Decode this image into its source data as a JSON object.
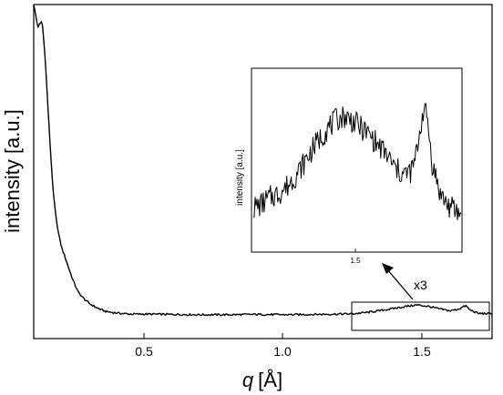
{
  "chart_data": [
    {
      "type": "line",
      "xlabel_symbol": "q",
      "xlabel_unit": "[Å]",
      "ylabel": "intensity [a.u.]",
      "xlim": [
        0.1,
        1.75
      ],
      "ylim": [
        0,
        1.0
      ],
      "xticks": [
        0.5,
        1.0,
        1.5
      ],
      "xtick_labels": [
        "0.5",
        "1.0",
        "1.5"
      ],
      "series": [
        {
          "x": [
            0.1,
            0.115,
            0.13,
            0.14,
            0.15,
            0.16,
            0.17,
            0.18,
            0.19,
            0.2,
            0.22,
            0.24,
            0.26,
            0.28,
            0.3,
            0.33,
            0.36,
            0.4,
            0.45,
            0.5,
            0.6,
            0.7,
            0.8,
            0.9,
            1.0,
            1.1,
            1.2,
            1.25,
            1.3,
            1.35,
            1.4,
            1.45,
            1.48,
            1.52,
            1.56,
            1.6,
            1.63,
            1.655,
            1.67,
            1.7,
            1.75
          ],
          "y": [
            1.0,
            0.93,
            0.95,
            0.85,
            0.7,
            0.55,
            0.42,
            0.34,
            0.29,
            0.25,
            0.2,
            0.15,
            0.11,
            0.09,
            0.075,
            0.06,
            0.05,
            0.045,
            0.042,
            0.042,
            0.041,
            0.04,
            0.04,
            0.041,
            0.04,
            0.041,
            0.042,
            0.043,
            0.047,
            0.053,
            0.06,
            0.067,
            0.07,
            0.066,
            0.058,
            0.052,
            0.058,
            0.068,
            0.055,
            0.044,
            0.043
          ]
        }
      ]
    },
    {
      "type": "line",
      "ylabel": "intensity [a.u.]",
      "xlim": [
        1.25,
        1.75
      ],
      "xticks": [
        1.5
      ],
      "xtick_labels": [
        "1.5"
      ],
      "series": [
        {
          "x": [
            1.25,
            1.27,
            1.29,
            1.31,
            1.33,
            1.35,
            1.37,
            1.39,
            1.41,
            1.43,
            1.45,
            1.47,
            1.49,
            1.51,
            1.53,
            1.55,
            1.57,
            1.59,
            1.61,
            1.63,
            1.64,
            1.65,
            1.66,
            1.67,
            1.68,
            1.7,
            1.72,
            1.75
          ],
          "y": [
            0.22,
            0.24,
            0.28,
            0.3,
            0.34,
            0.4,
            0.47,
            0.55,
            0.62,
            0.68,
            0.73,
            0.75,
            0.72,
            0.68,
            0.64,
            0.58,
            0.53,
            0.45,
            0.41,
            0.43,
            0.5,
            0.65,
            0.8,
            0.72,
            0.48,
            0.3,
            0.23,
            0.18
          ]
        }
      ]
    }
  ],
  "annotation": {
    "magnification": "x3"
  },
  "colors": {
    "line": "#000000",
    "background": "#ffffff"
  }
}
